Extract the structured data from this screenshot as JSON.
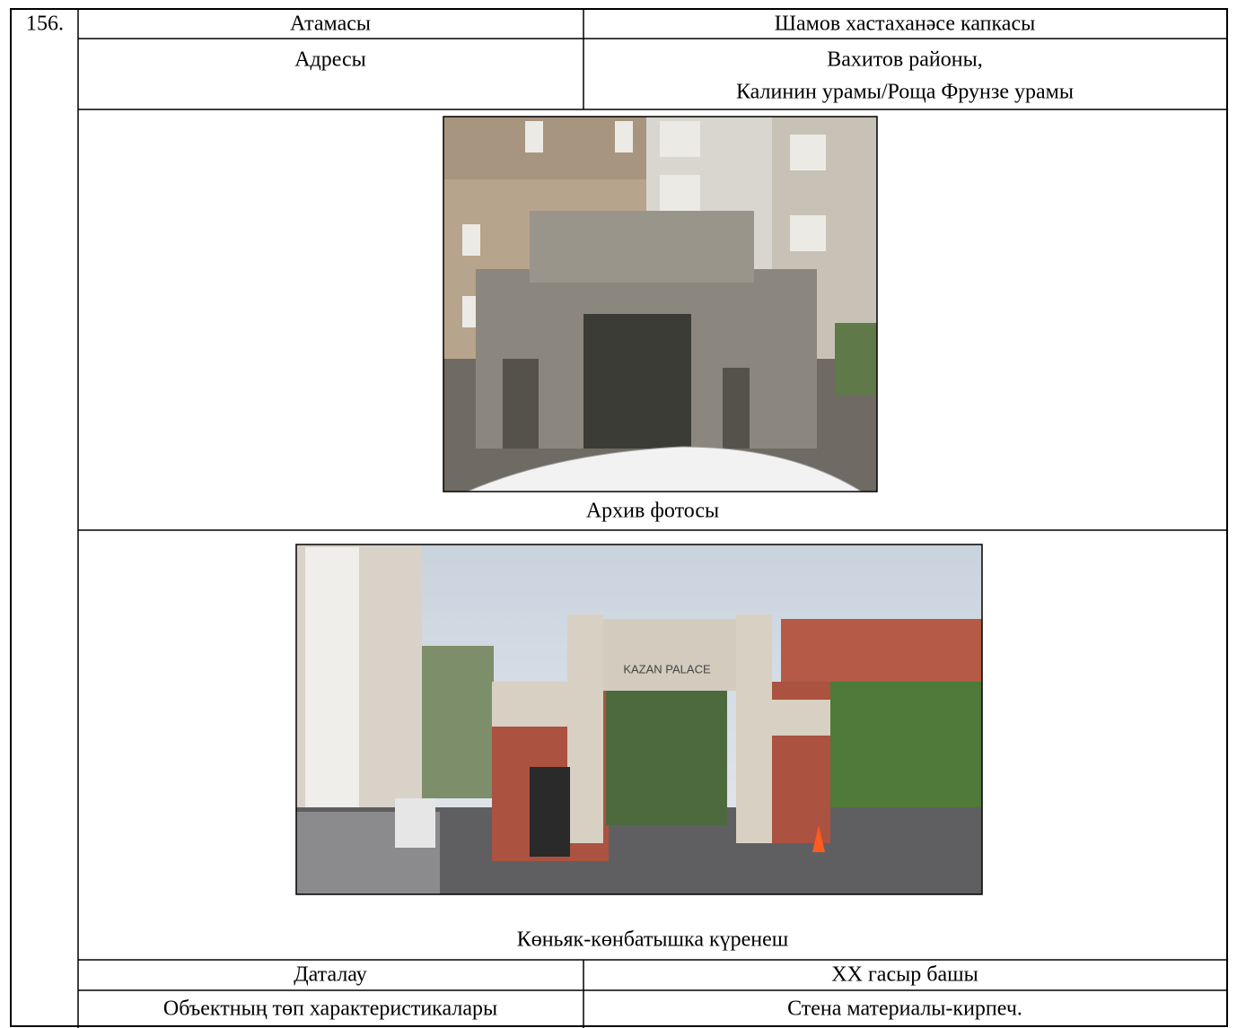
{
  "number": "156.",
  "rows": [
    {
      "label": "Атамасы",
      "value": [
        "Шамов хастаханәсе капкасы"
      ]
    },
    {
      "label": "Адресы",
      "value": [
        "Вахитов районы,",
        "Калинин урамы/Роща Фрунзе урамы"
      ]
    }
  ],
  "photos": [
    {
      "caption": "Архив фотосы"
    },
    {
      "caption": "Көньяк-көнбатышка күренеш",
      "sign": "KAZAN PALACE"
    }
  ],
  "details": [
    {
      "label": "Даталау",
      "value": "XX гасыр башы"
    },
    {
      "label": "Объектның төп характеристикалары",
      "value": "Стена материалы-кирпеч."
    }
  ]
}
